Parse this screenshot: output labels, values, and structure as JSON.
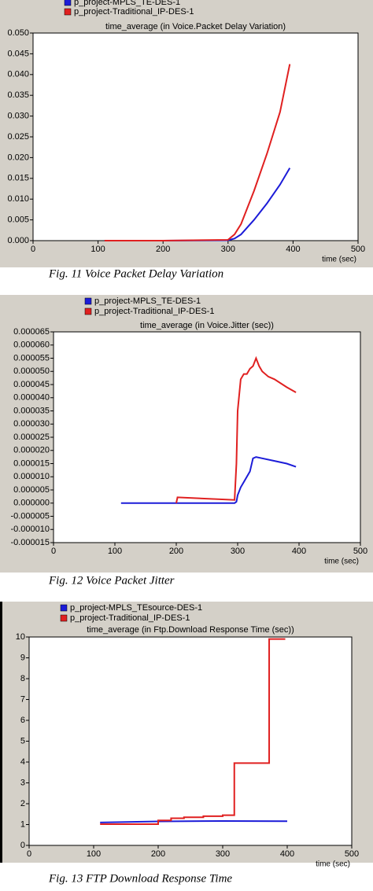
{
  "chart_data": [
    {
      "type": "line",
      "title": "time_average (in Voice.Packet Delay Variation)",
      "x_label": "time (sec)",
      "caption": "Fig. 11 Voice Packet Delay Variation",
      "xlim": [
        0,
        500
      ],
      "xticks": [
        0,
        100,
        200,
        300,
        400,
        500
      ],
      "ylim": [
        0,
        0.05
      ],
      "yticks": [
        {
          "value": 0,
          "label": "0.000"
        },
        0.005,
        {
          "value": 0.01,
          "label": "0.010"
        },
        0.015,
        {
          "value": 0.02,
          "label": "0.020"
        },
        0.025,
        {
          "value": 0.03,
          "label": "0.030"
        },
        0.035,
        {
          "value": 0.04,
          "label": "0.040"
        },
        0.045,
        {
          "value": 0.05,
          "label": "0.050"
        }
      ],
      "series": [
        {
          "name": "p_project-MPLS_TE-DES-1",
          "color": "#1c1cd8",
          "x": [
            110,
            200,
            300,
            310,
            320,
            340,
            360,
            380,
            395
          ],
          "values": [
            0,
            0,
            0.0001,
            0.0005,
            0.0015,
            0.005,
            0.009,
            0.0135,
            0.0175
          ]
        },
        {
          "name": "p_project-Traditional_IP-DES-1",
          "color": "#e02020",
          "x": [
            110,
            200,
            300,
            310,
            320,
            330,
            340,
            360,
            380,
            395
          ],
          "values": [
            0,
            0,
            0.0002,
            0.0015,
            0.004,
            0.008,
            0.012,
            0.021,
            0.031,
            0.0425
          ]
        }
      ]
    },
    {
      "type": "line",
      "title": "time_average (in Voice.Jitter (sec))",
      "x_label": "time (sec)",
      "caption": "Fig. 12 Voice Packet Jitter",
      "xlim": [
        0,
        500
      ],
      "xticks": [
        0,
        100,
        200,
        300,
        400,
        500
      ],
      "ylim": [
        -1.5e-05,
        6.5e-05
      ],
      "yticks": [
        6.5e-05,
        {
          "value": 6e-05,
          "label": "0.000060"
        },
        5.5e-05,
        {
          "value": 5e-05,
          "label": "0.000050"
        },
        4.5e-05,
        {
          "value": 4e-05,
          "label": "0.000040"
        },
        3.5e-05,
        {
          "value": 3e-05,
          "label": "0.000030"
        },
        2.5e-05,
        {
          "value": 2e-05,
          "label": "0.000020"
        },
        1.5e-05,
        {
          "value": 1e-05,
          "label": "0.000010"
        },
        5e-06,
        {
          "value": 0,
          "label": "0.000000"
        },
        -5e-06,
        {
          "value": -1e-05,
          "label": "-0.000010"
        },
        -1.5e-05
      ],
      "series": [
        {
          "name": "p_project-MPLS_TE-DES-1",
          "color": "#1c1cd8",
          "x": [
            110,
            200,
            295,
            298,
            300,
            305,
            310,
            320,
            325,
            330,
            340,
            360,
            380,
            395
          ],
          "values": [
            0,
            0,
            0,
            5e-07,
            3e-06,
            6e-06,
            8e-06,
            1.2e-05,
            1.7e-05,
            1.75e-05,
            1.7e-05,
            1.6e-05,
            1.5e-05,
            1.38e-05
          ]
        },
        {
          "name": "p_project-Traditional_IP-DES-1",
          "color": "#e02020",
          "x": [
            200,
            202,
            295,
            298,
            300,
            305,
            310,
            315,
            320,
            325,
            330,
            335,
            340,
            350,
            360,
            380,
            395
          ],
          "values": [
            0,
            2.2e-06,
            1.2e-06,
            1.5e-05,
            3.5e-05,
            4.7e-05,
            4.9e-05,
            4.9e-05,
            5.1e-05,
            5.2e-05,
            5.5e-05,
            5.2e-05,
            5e-05,
            4.8e-05,
            4.7e-05,
            4.4e-05,
            4.2e-05
          ]
        }
      ]
    },
    {
      "type": "line",
      "title": "time_average (in Ftp.Download Response Time (sec))",
      "x_label": "time (sec)",
      "caption": "Fig. 13 FTP Download Response Time",
      "xlim": [
        0,
        500
      ],
      "xticks": [
        0,
        100,
        200,
        300,
        400,
        500
      ],
      "ylim": [
        0,
        10
      ],
      "yticks": [
        0,
        1,
        2,
        3,
        4,
        5,
        6,
        7,
        8,
        9,
        10
      ],
      "series": [
        {
          "name": "p_project-MPLS_TEsource-DES-1",
          "color": "#1c1cd8",
          "x": [
            110,
            200,
            300,
            400
          ],
          "values": [
            1.1,
            1.15,
            1.17,
            1.16
          ]
        },
        {
          "name": "p_project-Traditional_IP-DES-1",
          "color": "#e02020",
          "x": [
            110,
            200,
            200,
            220,
            220,
            240,
            240,
            270,
            270,
            300,
            300,
            318,
            318,
            372,
            372,
            397
          ],
          "values": [
            1.02,
            1.02,
            1.2,
            1.2,
            1.3,
            1.3,
            1.35,
            1.35,
            1.4,
            1.4,
            1.45,
            1.45,
            3.95,
            3.95,
            9.9,
            9.9
          ]
        }
      ]
    }
  ]
}
